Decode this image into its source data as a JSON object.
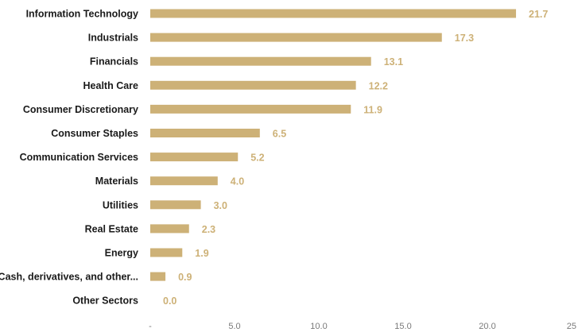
{
  "chart_data": {
    "type": "bar",
    "orientation": "horizontal",
    "title": "",
    "xlabel": "",
    "ylabel": "",
    "categories": [
      "Information Technology",
      "Industrials",
      "Financials",
      "Health Care",
      "Consumer Discretionary",
      "Consumer Staples",
      "Communication Services",
      "Materials",
      "Utilities",
      "Real Estate",
      "Energy",
      "Cash, derivatives, and other...",
      "Other Sectors"
    ],
    "values": [
      21.7,
      17.3,
      13.1,
      12.2,
      11.9,
      6.5,
      5.2,
      4.0,
      3.0,
      2.3,
      1.9,
      0.9,
      0.0
    ],
    "value_labels": [
      "21.7",
      "17.3",
      "13.1",
      "12.2",
      "11.9",
      "6.5",
      "5.2",
      "4.0",
      "3.0",
      "2.3",
      "1.9",
      "0.9",
      "0.0"
    ],
    "xlim": [
      0,
      25
    ],
    "xticks": [
      0,
      5,
      10,
      15,
      20,
      25
    ],
    "xtick_labels": [
      "-",
      "5.0",
      "10.0",
      "15.0",
      "20.0",
      "25"
    ],
    "grid": false,
    "legend": "none",
    "colors": {
      "bar": "#cdb177",
      "value_label": "#cdb177",
      "category_label": "#1a1a1a",
      "tick_label": "#7a7a7a"
    }
  }
}
